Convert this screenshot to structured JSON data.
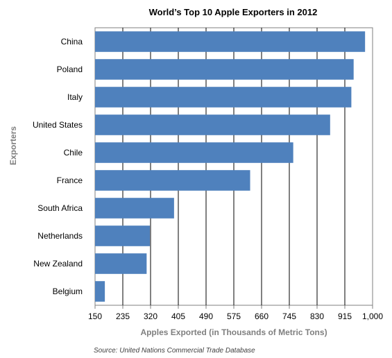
{
  "chart_data": {
    "type": "bar",
    "orientation": "horizontal",
    "title": "World’s Top 10 Apple Exporters in 2012",
    "xlabel": "Apples Exported (in Thousands of Metric Tons)",
    "ylabel": "Exporters",
    "source": "Source: United Nations Commercial Trade Database",
    "categories": [
      "China",
      "Poland",
      "Italy",
      "United States",
      "Chile",
      "France",
      "South Africa",
      "Netherlands",
      "New Zealand",
      "Belgium"
    ],
    "values": [
      977,
      942,
      935,
      870,
      757,
      625,
      392,
      318,
      308,
      180
    ],
    "xlim": [
      150,
      1000
    ],
    "xticks": [
      150,
      235,
      320,
      405,
      490,
      575,
      660,
      745,
      830,
      915,
      1000
    ],
    "xtick_labels": [
      "150",
      "235",
      "320",
      "405",
      "490",
      "575",
      "660",
      "745",
      "830",
      "915",
      "1,000"
    ],
    "grid": true,
    "bar_color": "#4f81bd"
  }
}
